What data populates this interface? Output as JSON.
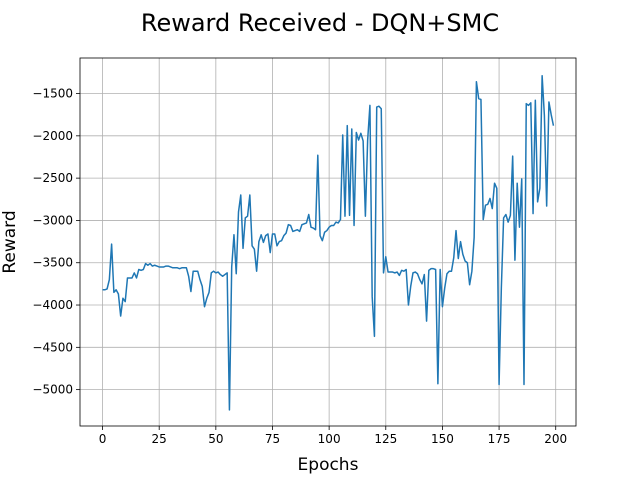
{
  "chart_data": {
    "type": "line",
    "title": "Reward Received - DQN+SMC",
    "xlabel": "Epochs",
    "ylabel": "Reward",
    "series": [
      {
        "color": "#1f77b4",
        "values": [
          -3820,
          -3820,
          -3810,
          -3700,
          -3280,
          -3850,
          -3820,
          -3870,
          -4130,
          -3920,
          -3960,
          -3680,
          -3680,
          -3680,
          -3620,
          -3680,
          -3580,
          -3590,
          -3580,
          -3510,
          -3530,
          -3510,
          -3540,
          -3530,
          -3540,
          -3550,
          -3550,
          -3550,
          -3540,
          -3540,
          -3550,
          -3560,
          -3560,
          -3560,
          -3570,
          -3560,
          -3560,
          -3560,
          -3660,
          -3840,
          -3600,
          -3600,
          -3600,
          -3700,
          -3780,
          -4020,
          -3920,
          -3850,
          -3620,
          -3600,
          -3620,
          -3610,
          -3640,
          -3660,
          -3640,
          -3620,
          -5240,
          -3550,
          -3170,
          -3630,
          -2900,
          -2700,
          -3330,
          -2970,
          -2950,
          -2700,
          -3300,
          -3340,
          -3600,
          -3250,
          -3170,
          -3260,
          -3180,
          -3160,
          -3380,
          -3160,
          -3160,
          -3300,
          -3250,
          -3240,
          -3180,
          -3150,
          -3050,
          -3060,
          -3130,
          -3120,
          -3110,
          -3130,
          -3050,
          -3040,
          -3030,
          -2930,
          -3080,
          -3090,
          -3110,
          -2230,
          -3180,
          -3240,
          -3140,
          -3120,
          -3080,
          -3060,
          -3060,
          -3020,
          -3030,
          -2990,
          -1990,
          -2950,
          -1880,
          -2940,
          -1920,
          -3060,
          -1960,
          -2050,
          -1970,
          -2060,
          -2950,
          -2050,
          -1640,
          -3900,
          -4370,
          -1660,
          -1650,
          -1680,
          -3620,
          -3430,
          -3610,
          -3610,
          -3610,
          -3620,
          -3610,
          -3650,
          -3590,
          -3600,
          -3580,
          -4000,
          -3780,
          -3620,
          -3610,
          -3630,
          -3700,
          -3750,
          -3640,
          -4190,
          -3590,
          -3570,
          -3570,
          -3580,
          -4930,
          -3580,
          -4020,
          -3800,
          -3630,
          -3600,
          -3600,
          -3440,
          -3120,
          -3450,
          -3250,
          -3400,
          -3480,
          -3500,
          -3760,
          -3600,
          -3200,
          -1360,
          -1560,
          -1570,
          -2990,
          -2820,
          -2810,
          -2740,
          -2860,
          -2560,
          -2620,
          -4940,
          -3800,
          -2970,
          -2930,
          -3020,
          -2940,
          -2240,
          -3470,
          -2560,
          -3080,
          -2510,
          -4940,
          -1620,
          -1640,
          -1610,
          -2920,
          -1580,
          -2780,
          -2620,
          -1290,
          -1760,
          -2830,
          -1600,
          -1750,
          -1880
        ]
      }
    ],
    "xlim": [
      -9.95,
      208.95
    ],
    "xticks": [
      0,
      25,
      50,
      75,
      100,
      125,
      150,
      175,
      200
    ],
    "ylim": [
      -5430,
      -1080
    ],
    "yticks": [
      {
        "value": -5000,
        "label": "−5000"
      },
      {
        "value": -4500,
        "label": "−4500"
      },
      {
        "value": -4000,
        "label": "−4000"
      },
      {
        "value": -3500,
        "label": "−3500"
      },
      {
        "value": -3000,
        "label": "−3000"
      },
      {
        "value": -2500,
        "label": "−2500"
      },
      {
        "value": -2000,
        "label": "−2000"
      },
      {
        "value": -1500,
        "label": "−1500"
      }
    ],
    "grid": true
  }
}
